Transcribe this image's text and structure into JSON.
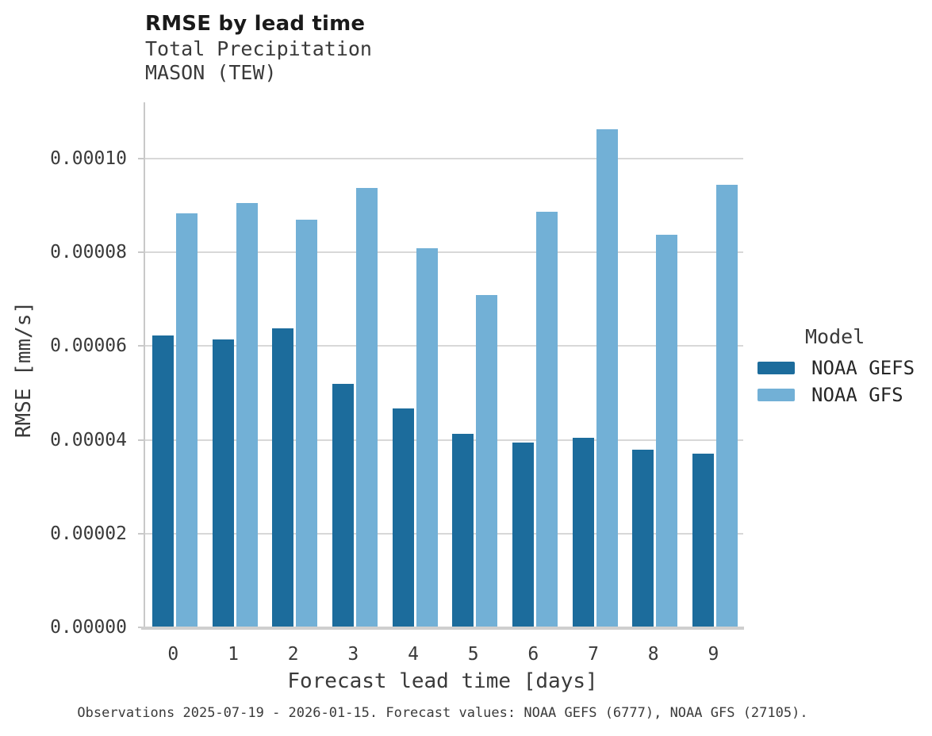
{
  "header": {
    "title": "RMSE by lead time",
    "subtitle_line1": "Total Precipitation",
    "subtitle_line2": "MASON (TEW)"
  },
  "legend": {
    "title": "Model",
    "entries": [
      {
        "label": "NOAA GEFS",
        "color": "#1c6c9c"
      },
      {
        "label": "NOAA GFS",
        "color": "#72b0d6"
      }
    ]
  },
  "footer": {
    "text": "Observations 2025-07-19 - 2026-01-15. Forecast values: NOAA GEFS (6777), NOAA GFS (27105)."
  },
  "chart_data": {
    "type": "bar",
    "title": "RMSE by lead time",
    "subtitle_lines": [
      "Total Precipitation",
      "MASON (TEW)"
    ],
    "categories": [
      "0",
      "1",
      "2",
      "3",
      "4",
      "5",
      "6",
      "7",
      "8",
      "9"
    ],
    "series": [
      {
        "name": "NOAA GEFS",
        "color": "#1c6c9c",
        "values": [
          6.22e-05,
          6.14e-05,
          6.38e-05,
          5.2e-05,
          4.67e-05,
          4.13e-05,
          3.94e-05,
          4.04e-05,
          3.79e-05,
          3.71e-05
        ]
      },
      {
        "name": "NOAA GFS",
        "color": "#72b0d6",
        "values": [
          8.83e-05,
          9.05e-05,
          8.7e-05,
          9.37e-05,
          8.09e-05,
          7.09e-05,
          8.86e-05,
          0.0001062,
          8.38e-05,
          9.44e-05
        ]
      }
    ],
    "xlabel": "Forecast lead time [days]",
    "ylabel": "RMSE [mm/s]",
    "ylim": [
      0,
      0.000112
    ],
    "yticks": [
      0.0,
      2e-05,
      4e-05,
      6e-05,
      8e-05,
      0.0001
    ],
    "ytick_labels": [
      "0.00000",
      "0.00002",
      "0.00004",
      "0.00006",
      "0.00008",
      "0.00010"
    ],
    "grid": "horizontal",
    "legend_position": "right",
    "legend_title": "Model"
  }
}
